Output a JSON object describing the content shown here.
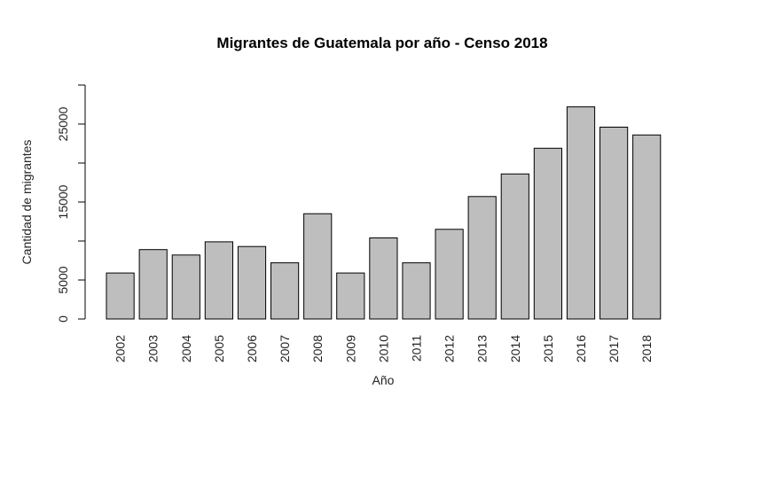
{
  "chart_data": {
    "type": "bar",
    "title": "Migrantes de Guatemala por año - Censo 2018",
    "xlabel": "Año",
    "ylabel": "Cantidad de migrantes",
    "categories": [
      "2002",
      "2003",
      "2004",
      "2005",
      "2006",
      "2007",
      "2008",
      "2009",
      "2010",
      "2011",
      "2012",
      "2013",
      "2014",
      "2015",
      "2016",
      "2017",
      "2018"
    ],
    "values": [
      5900,
      8900,
      8200,
      9900,
      9300,
      7200,
      13500,
      5900,
      10400,
      7200,
      11500,
      15700,
      18600,
      21900,
      27200,
      24600,
      23600
    ],
    "yticks": [
      0,
      5000,
      10000,
      15000,
      20000,
      25000,
      30000
    ],
    "ytick_labels": [
      "0",
      "5000",
      "",
      "15000",
      "",
      "25000",
      ""
    ],
    "ylim": [
      0,
      30000
    ],
    "bar_color": "#bebebe",
    "grid": false,
    "legend": "none"
  }
}
